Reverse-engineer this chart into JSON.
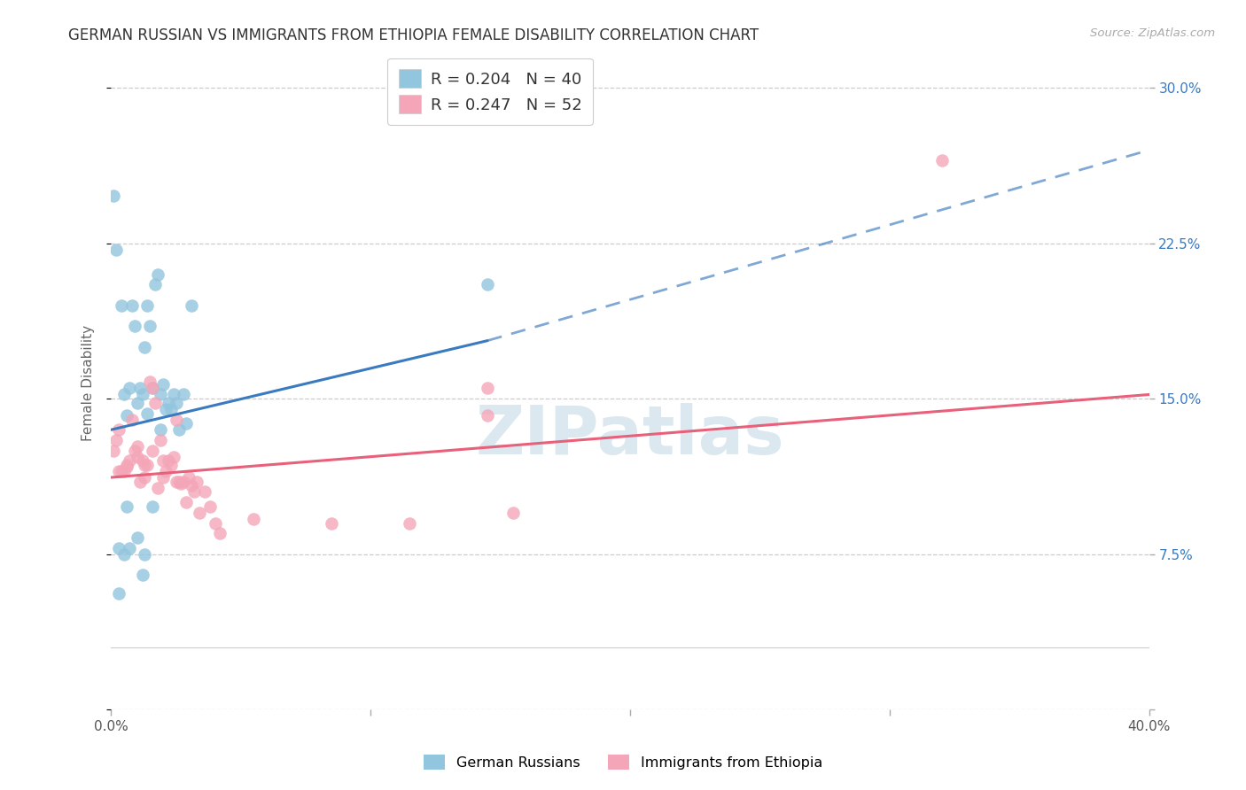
{
  "title": "GERMAN RUSSIAN VS IMMIGRANTS FROM ETHIOPIA FEMALE DISABILITY CORRELATION CHART",
  "source": "Source: ZipAtlas.com",
  "ylabel": "Female Disability",
  "ytick_vals": [
    0.0,
    0.075,
    0.15,
    0.225,
    0.3
  ],
  "ytick_labels": [
    "",
    "7.5%",
    "15.0%",
    "22.5%",
    "30.0%"
  ],
  "xmin": 0.0,
  "xmax": 0.4,
  "ymin": 0.03,
  "ymax": 0.315,
  "legend_r1": "R = 0.204",
  "legend_n1": "N = 40",
  "legend_r2": "R = 0.247",
  "legend_n2": "N = 52",
  "color_blue": "#92c5de",
  "color_pink": "#f4a6b8",
  "color_blue_line": "#3a7abf",
  "color_pink_line": "#e8607a",
  "color_blue_text": "#3a7abf",
  "blue_x": [
    0.001,
    0.002,
    0.004,
    0.005,
    0.006,
    0.007,
    0.008,
    0.009,
    0.01,
    0.011,
    0.012,
    0.013,
    0.014,
    0.015,
    0.016,
    0.017,
    0.018,
    0.019,
    0.02,
    0.021,
    0.022,
    0.023,
    0.024,
    0.025,
    0.026,
    0.028,
    0.029,
    0.031,
    0.003,
    0.006,
    0.007,
    0.01,
    0.013,
    0.016,
    0.019,
    0.145,
    0.003,
    0.014,
    0.005,
    0.012
  ],
  "blue_y": [
    0.248,
    0.222,
    0.195,
    0.152,
    0.142,
    0.155,
    0.195,
    0.185,
    0.148,
    0.155,
    0.152,
    0.175,
    0.195,
    0.185,
    0.155,
    0.205,
    0.21,
    0.152,
    0.157,
    0.145,
    0.148,
    0.145,
    0.152,
    0.148,
    0.135,
    0.152,
    0.138,
    0.195,
    0.078,
    0.098,
    0.078,
    0.083,
    0.075,
    0.098,
    0.135,
    0.205,
    0.056,
    0.143,
    0.075,
    0.065
  ],
  "pink_x": [
    0.001,
    0.002,
    0.003,
    0.004,
    0.005,
    0.006,
    0.007,
    0.008,
    0.009,
    0.01,
    0.011,
    0.012,
    0.013,
    0.014,
    0.015,
    0.016,
    0.017,
    0.018,
    0.019,
    0.02,
    0.021,
    0.022,
    0.023,
    0.024,
    0.025,
    0.026,
    0.027,
    0.028,
    0.029,
    0.03,
    0.031,
    0.032,
    0.033,
    0.034,
    0.036,
    0.038,
    0.04,
    0.042,
    0.055,
    0.145,
    0.32,
    0.003,
    0.006,
    0.01,
    0.013,
    0.016,
    0.02,
    0.025,
    0.085,
    0.145,
    0.155,
    0.115
  ],
  "pink_y": [
    0.125,
    0.13,
    0.135,
    0.115,
    0.115,
    0.117,
    0.12,
    0.14,
    0.125,
    0.127,
    0.11,
    0.12,
    0.112,
    0.118,
    0.158,
    0.155,
    0.148,
    0.107,
    0.13,
    0.112,
    0.115,
    0.12,
    0.118,
    0.122,
    0.14,
    0.11,
    0.109,
    0.11,
    0.1,
    0.112,
    0.108,
    0.105,
    0.11,
    0.095,
    0.105,
    0.098,
    0.09,
    0.085,
    0.092,
    0.142,
    0.265,
    0.115,
    0.118,
    0.122,
    0.118,
    0.125,
    0.12,
    0.11,
    0.09,
    0.155,
    0.095,
    0.09
  ],
  "blue_line_x_start": 0.0,
  "blue_line_x_solid_end": 0.145,
  "blue_line_x_end": 0.4,
  "blue_line_y_start": 0.135,
  "blue_line_y_solid_end": 0.178,
  "blue_line_y_end": 0.27,
  "pink_line_x_start": 0.0,
  "pink_line_x_end": 0.4,
  "pink_line_y_start": 0.112,
  "pink_line_y_end": 0.152
}
